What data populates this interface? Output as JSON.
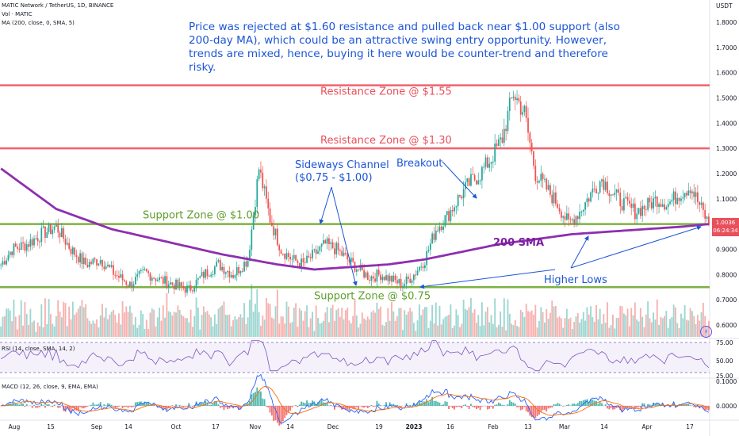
{
  "header": {
    "symbol_line": "MATIC Network / TetherUS, 1D, BINANCE",
    "vol_line": "Vol · MATIC",
    "ma_line": "MA (200, close, 0, SMA, 5)",
    "currency": "USDT"
  },
  "note": "Price was rejected at $1.60 resistance and pulled back near $1.00 support (also 200-day MA), which could be an attractive swing entry opportunity. However, trends are mixed, hence, buying it here would be counter-trend and therefore risky.",
  "annotations": {
    "resistance_155": "Resistance Zone @ $1.55",
    "resistance_130": "Resistance Zone @ $1.30",
    "support_100": "Support Zone @ $1.00",
    "support_075": "Support Zone @ $0.75",
    "sideways_1": "Sideways Channel",
    "sideways_2": "($0.75 - $1.00)",
    "breakout": "Breakout",
    "sma": "200 SMA",
    "higher_lows": "Higher Lows"
  },
  "price_badge": {
    "price": "1.0036",
    "countdown": "06:24:34"
  },
  "rsi_label": "RSI (14, close, SMA, 14, 2)",
  "macd_label": "MACD (12, 26, close, 9, EMA, EMA)",
  "colors": {
    "up": "#26a69a",
    "down": "#ef5350",
    "sma": "#8e2fb0",
    "resistance": "#f0626b",
    "support": "#7cb342",
    "text_blue": "#1c55d6"
  },
  "chart_data": {
    "type": "candlestick",
    "price_axis": {
      "ticks": [
        "1.8000",
        "1.7000",
        "1.6000",
        "1.5000",
        "1.4000",
        "1.3000",
        "1.2000",
        "1.1000",
        "1.0000",
        "0.9000",
        "0.8000",
        "0.7000",
        "0.6000"
      ],
      "range": [
        0.58,
        1.85
      ]
    },
    "rsi_axis": {
      "ticks": [
        "75.00",
        "50.00",
        "25.00"
      ]
    },
    "macd_axis": {
      "ticks": [
        "0.1000",
        "0.0000"
      ]
    },
    "x_ticks": [
      "Aug",
      "15",
      "Sep",
      "14",
      "Oct",
      "17",
      "Nov",
      "14",
      "Dec",
      "19",
      "2023",
      "16",
      "Feb",
      "13",
      "Mar",
      "14",
      "Apr",
      "17"
    ],
    "price_path": [
      [
        0,
        0.84
      ],
      [
        6,
        0.9
      ],
      [
        14,
        0.92
      ],
      [
        22,
        0.96
      ],
      [
        30,
        0.99
      ],
      [
        38,
        0.9
      ],
      [
        46,
        0.84
      ],
      [
        54,
        0.86
      ],
      [
        62,
        0.8
      ],
      [
        70,
        0.76
      ],
      [
        78,
        0.81
      ],
      [
        86,
        0.78
      ],
      [
        94,
        0.76
      ],
      [
        102,
        0.74
      ],
      [
        110,
        0.8
      ],
      [
        118,
        0.84
      ],
      [
        126,
        0.8
      ],
      [
        134,
        0.86
      ],
      [
        140,
        1.22
      ],
      [
        146,
        1.02
      ],
      [
        152,
        0.9
      ],
      [
        158,
        0.86
      ],
      [
        164,
        0.84
      ],
      [
        170,
        0.88
      ],
      [
        176,
        0.92
      ],
      [
        182,
        0.9
      ],
      [
        188,
        0.86
      ],
      [
        194,
        0.82
      ],
      [
        200,
        0.79
      ],
      [
        206,
        0.8
      ],
      [
        212,
        0.78
      ],
      [
        218,
        0.76
      ],
      [
        224,
        0.8
      ],
      [
        230,
        0.86
      ],
      [
        236,
        0.98
      ],
      [
        242,
        1.03
      ],
      [
        248,
        1.1
      ],
      [
        254,
        1.16
      ],
      [
        260,
        1.2
      ],
      [
        266,
        1.26
      ],
      [
        272,
        1.34
      ],
      [
        278,
        1.52
      ],
      [
        284,
        1.44
      ],
      [
        290,
        1.2
      ],
      [
        296,
        1.14
      ],
      [
        302,
        1.08
      ],
      [
        308,
        1.0
      ],
      [
        314,
        1.05
      ],
      [
        320,
        1.12
      ],
      [
        326,
        1.18
      ],
      [
        332,
        1.12
      ],
      [
        338,
        1.08
      ],
      [
        344,
        1.05
      ],
      [
        350,
        1.07
      ],
      [
        356,
        1.1
      ],
      [
        362,
        1.08
      ],
      [
        368,
        1.12
      ],
      [
        374,
        1.15
      ],
      [
        380,
        1.06
      ],
      [
        384,
        1.0
      ]
    ],
    "sma_200": [
      [
        0,
        1.22
      ],
      [
        30,
        1.06
      ],
      [
        60,
        0.98
      ],
      [
        90,
        0.93
      ],
      [
        120,
        0.88
      ],
      [
        150,
        0.84
      ],
      [
        170,
        0.82
      ],
      [
        190,
        0.83
      ],
      [
        210,
        0.84
      ],
      [
        230,
        0.86
      ],
      [
        250,
        0.89
      ],
      [
        270,
        0.92
      ],
      [
        290,
        0.94
      ],
      [
        310,
        0.96
      ],
      [
        330,
        0.97
      ],
      [
        350,
        0.98
      ],
      [
        370,
        0.99
      ],
      [
        384,
        1.0
      ]
    ],
    "zones": {
      "resistance": [
        1.55,
        1.3
      ],
      "support": [
        1.0,
        0.75
      ]
    }
  }
}
